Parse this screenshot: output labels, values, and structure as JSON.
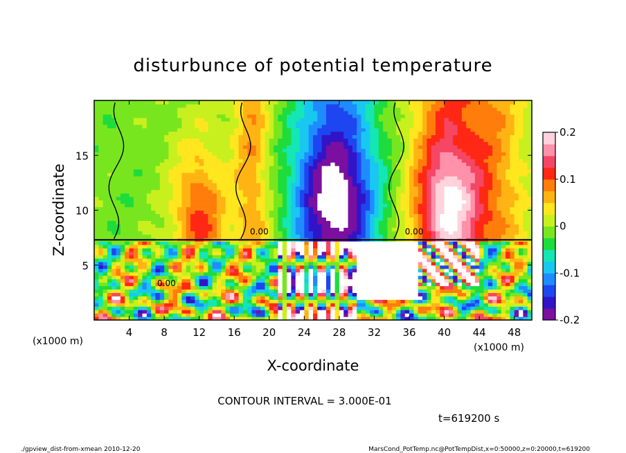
{
  "chart_data": {
    "type": "heatmap",
    "title": "disturbunce of potential temperature",
    "xlabel": "X-coordinate",
    "ylabel": "Z-coordinate",
    "x_unit": "(x1000 m)",
    "xlim": [
      0,
      50
    ],
    "ylim": [
      0,
      20
    ],
    "x_ticks": [
      "4",
      "8",
      "12",
      "16",
      "20",
      "24",
      "28",
      "32",
      "36",
      "40",
      "44",
      "48"
    ],
    "x_tick_values": [
      4,
      8,
      12,
      16,
      20,
      24,
      28,
      32,
      36,
      40,
      44,
      48
    ],
    "y_ticks": [
      "5",
      "10",
      "15"
    ],
    "y_tick_values": [
      5,
      10,
      15
    ],
    "colorbar": {
      "ticks": [
        "0.2",
        "0.1",
        "0",
        "-0.1",
        "-0.2"
      ],
      "tick_values": [
        0.2,
        0.1,
        0,
        -0.1,
        -0.2
      ],
      "range": [
        -0.2,
        0.2
      ],
      "colors": [
        "#7a0fa0",
        "#3214c8",
        "#1e46f0",
        "#1e8cff",
        "#19c8f0",
        "#14e6b4",
        "#1edc3c",
        "#78e61e",
        "#c8f01e",
        "#ffe61e",
        "#ffb414",
        "#ff7d0a",
        "#ff2814",
        "#f54664",
        "#ff91aa",
        "#ffd2dc"
      ]
    },
    "contour_labels": [
      "0.00"
    ],
    "contour_interval_text": "CONTOUR INTERVAL = 3.000E-01",
    "time_text": "t=619200 s",
    "grid": false,
    "legend": "colorbar-right"
  },
  "footer": {
    "left": "./gpview_dist-from-xmean  2010-12-20",
    "right": "MarsCond_PotTemp.nc@PotTempDist,x=0:50000,z=0:20000,t=619200"
  }
}
